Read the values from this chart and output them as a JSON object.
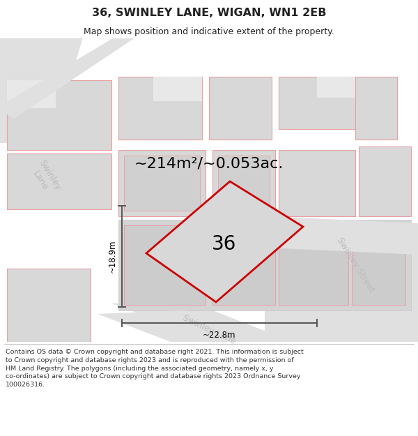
{
  "title": "36, SWINLEY LANE, WIGAN, WN1 2EB",
  "subtitle": "Map shows position and indicative extent of the property.",
  "area_label": "~214m²/~0.053ac.",
  "property_number": "36",
  "dim_width": "~22.8m",
  "dim_height": "~18.9m",
  "footer": "Contains OS data © Crown copyright and database right 2021. This information is subject to Crown copyright and database rights 2023 and is reproduced with the permission of HM Land Registry. The polygons (including the associated geometry, namely x, y co-ordinates) are subject to Crown copyright and database rights 2023 Ordnance Survey 100026316.",
  "map_bg": "#e8e8e8",
  "building_fill": "#d8d8d8",
  "building_edge": "#e8a0a0",
  "road_fill": "#e8e8e8",
  "plot_color": "#cc0000",
  "dim_color": "#555555",
  "street_color": "#bbbbbb",
  "title_color": "#222222",
  "footer_color": "#333333",
  "white": "#ffffff",
  "title_fontsize": 11.5,
  "subtitle_fontsize": 9,
  "area_fontsize": 16,
  "number_fontsize": 20,
  "dim_fontsize": 8.5,
  "street_fontsize": 9,
  "footer_fontsize": 6.8
}
